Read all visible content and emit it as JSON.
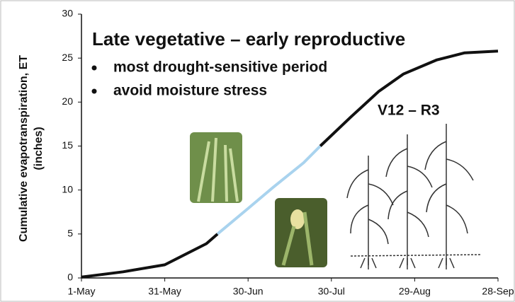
{
  "chart_data": {
    "type": "line",
    "title": "Late vegetative – early reproductive",
    "annotations": [
      "most drought-sensitive period",
      "avoid moisture stress",
      "V12 – R3"
    ],
    "ylabel": [
      "Cumulative evapotranspiration, ET",
      "(inches)"
    ],
    "x": [
      "1-May",
      "16-May",
      "31-May",
      "15-Jun",
      "19-Jun",
      "30-Jun",
      "9-Jul",
      "20-Jul",
      "26-Jul",
      "6-Aug",
      "16-Aug",
      "25-Aug",
      "6-Sep",
      "16-Sep",
      "28-Sep"
    ],
    "series": [
      {
        "color": "#111111",
        "values": [
          0.1,
          0.7,
          1.5,
          3.9,
          5,
          null,
          null,
          null,
          15,
          18.3,
          21.2,
          23.2,
          24.8,
          25.6,
          25.8
        ]
      },
      {
        "color": "#a9d3ee",
        "values": [
          null,
          null,
          null,
          null,
          5,
          7.9,
          10.3,
          13.1,
          15,
          null,
          null,
          null,
          null,
          null,
          null
        ]
      }
    ],
    "xlim": [
      "1-May",
      "28-Sep"
    ],
    "xticks": [
      "1-May",
      "31-May",
      "30-Jun",
      "30-Jul",
      "29-Aug",
      "28-Sep"
    ],
    "ylim": [
      0,
      30
    ],
    "yticks": [
      0,
      5,
      10,
      15,
      20,
      25,
      30
    ],
    "grid": false
  }
}
